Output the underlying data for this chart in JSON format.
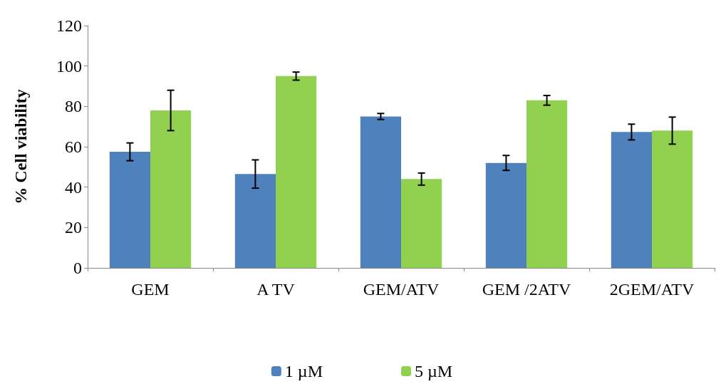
{
  "chart_data": {
    "type": "bar",
    "ylabel": "% Cell viability",
    "categories": [
      "GEM",
      "A TV",
      "GEM/ATV",
      "GEM /2ATV",
      "2GEM/ATV"
    ],
    "series": [
      {
        "name": "1 µM",
        "color": "#4f81bd",
        "values": [
          57.5,
          46.5,
          75,
          52,
          67.3
        ],
        "errors": [
          4.4,
          7,
          1.5,
          3.7,
          3.9
        ]
      },
      {
        "name": "5 µM",
        "color": "#92d050",
        "values": [
          78,
          95,
          44,
          83,
          68
        ],
        "errors": [
          10,
          2,
          3,
          2.4,
          6.7
        ]
      }
    ],
    "ylim": [
      0,
      120
    ],
    "yticks": [
      0,
      20,
      40,
      60,
      80,
      100,
      120
    ],
    "grid": false,
    "legend": "bottom"
  }
}
